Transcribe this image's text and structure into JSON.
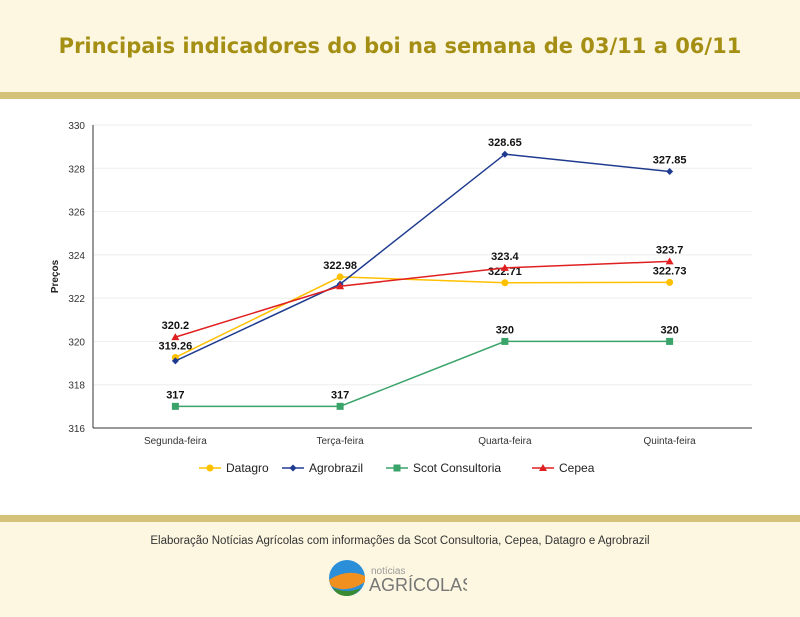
{
  "header": {
    "title": "Principais indicadores do boi na semana de 03/11 a 06/11"
  },
  "footer": {
    "credit": "Elaboração Notícias Agrícolas com informações da Scot Consultoria, Cepea, Datagro e Agrobrazil",
    "logo_text_small": "notícias",
    "logo_text_big": "AGRÍCOLAS"
  },
  "chart_data": {
    "type": "line",
    "categories": [
      "Segunda-feira",
      "Terça-feira",
      "Quarta-feira",
      "Quinta-feira"
    ],
    "ylabel": "Preços",
    "xlabel": "",
    "ylim": [
      316,
      330
    ],
    "yticks": [
      "316",
      "318",
      "320",
      "322",
      "324",
      "326",
      "328",
      "330"
    ],
    "grid": true,
    "legend": "bottom",
    "series": [
      {
        "name": "Datagro",
        "color": "#ffc000",
        "marker": "circle",
        "values": [
          319.26,
          322.98,
          322.71,
          322.73
        ],
        "labels": [
          "319.26",
          "322.98",
          "322.71",
          "322.73"
        ]
      },
      {
        "name": "Agrobrazil",
        "color": "#1f3b8f",
        "marker": "diamond",
        "values": [
          319.1,
          322.65,
          328.65,
          327.85
        ],
        "labels": [
          null,
          null,
          "328.65",
          "327.85"
        ]
      },
      {
        "name": "Scot Consultoria",
        "color": "#3aa36a",
        "marker": "square",
        "values": [
          317,
          317,
          320,
          320
        ],
        "labels": [
          "317",
          "317",
          "320",
          "320"
        ]
      },
      {
        "name": "Cepea",
        "color": "#e02020",
        "marker": "triangle",
        "values": [
          320.2,
          322.55,
          323.4,
          323.7
        ],
        "labels": [
          "320.2",
          null,
          "323.4",
          "323.7"
        ]
      }
    ]
  }
}
